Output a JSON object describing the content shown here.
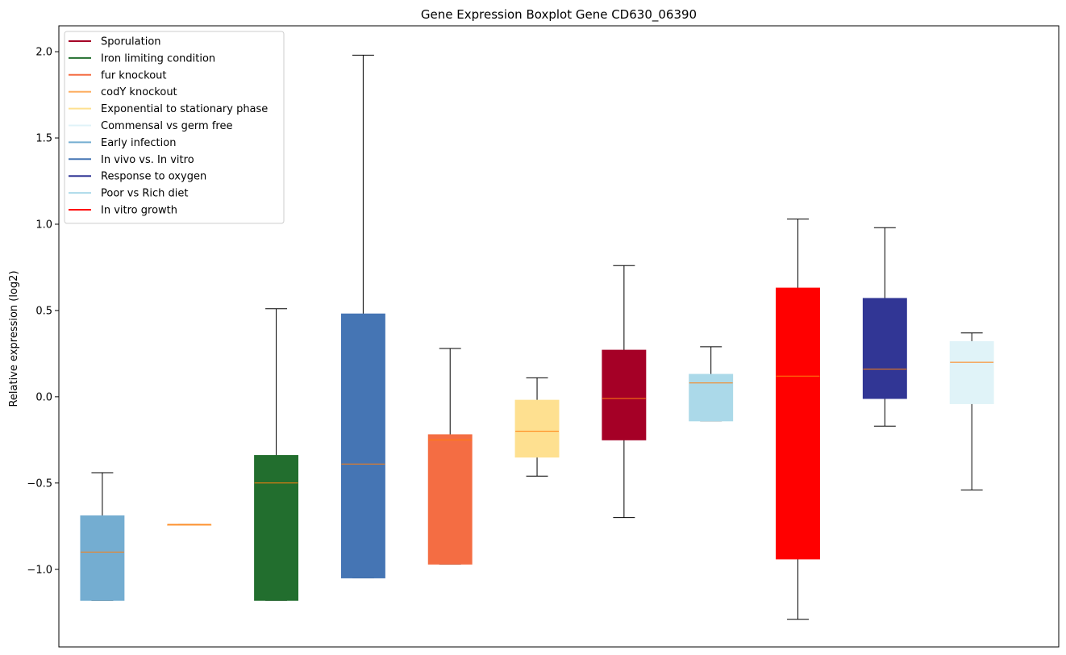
{
  "chart_data": {
    "type": "boxplot",
    "title": "Gene Expression Boxplot Gene CD630_06390",
    "xlabel": "",
    "ylabel": "Relative expression (log2)",
    "ylim": [
      -1.45,
      2.15
    ],
    "yticks": [
      -1.0,
      -0.5,
      0.0,
      0.5,
      1.0,
      1.5,
      2.0
    ],
    "ytick_labels": [
      "−1.0",
      "−0.5",
      "0.0",
      "0.5",
      "1.0",
      "1.5",
      "2.0"
    ],
    "grid": false,
    "legend_position": "top-left",
    "legend": [
      {
        "label": "Sporulation",
        "color": "#a50026"
      },
      {
        "label": "Iron limiting condition",
        "color": "#226e2e"
      },
      {
        "label": "fur knockout",
        "color": "#f46d43"
      },
      {
        "label": "codY knockout",
        "color": "#fdae61"
      },
      {
        "label": "Exponential to stationary phase",
        "color": "#fee090"
      },
      {
        "label": "Commensal vs germ free",
        "color": "#e0f3f8"
      },
      {
        "label": "Early infection",
        "color": "#74add1"
      },
      {
        "label": "In vivo vs. In vitro",
        "color": "#4575b4"
      },
      {
        "label": "Response to oxygen",
        "color": "#313695"
      },
      {
        "label": "Poor vs Rich diet",
        "color": "#abd9e9"
      },
      {
        "label": "In vitro growth",
        "color": "#ff0000"
      }
    ],
    "boxes": [
      {
        "name": "Early infection",
        "color": "#74add1",
        "whislo": -1.18,
        "q1": -1.18,
        "med": -0.9,
        "q3": -0.69,
        "whishi": -0.44
      },
      {
        "name": "codY knockout",
        "color": "#fdae61",
        "whislo": -0.74,
        "q1": -0.74,
        "med": -0.74,
        "q3": -0.74,
        "whishi": -0.74
      },
      {
        "name": "Iron limiting condition",
        "color": "#226e2e",
        "whislo": -1.18,
        "q1": -1.18,
        "med": -0.5,
        "q3": -0.34,
        "whishi": 0.51
      },
      {
        "name": "In vivo vs. In vitro",
        "color": "#4575b4",
        "whislo": -1.05,
        "q1": -1.05,
        "med": -0.39,
        "q3": 0.48,
        "whishi": 1.98
      },
      {
        "name": "fur knockout",
        "color": "#f46d43",
        "whislo": -0.97,
        "q1": -0.97,
        "med": -0.25,
        "q3": -0.22,
        "whishi": 0.28
      },
      {
        "name": "Exponential to stationary phase",
        "color": "#fee090",
        "whislo": -0.46,
        "q1": -0.35,
        "med": -0.2,
        "q3": -0.02,
        "whishi": 0.11
      },
      {
        "name": "Sporulation",
        "color": "#a50026",
        "whislo": -0.7,
        "q1": -0.25,
        "med": -0.01,
        "q3": 0.27,
        "whishi": 0.76
      },
      {
        "name": "Poor vs Rich diet",
        "color": "#abd9e9",
        "whislo": -0.14,
        "q1": -0.14,
        "med": 0.08,
        "q3": 0.13,
        "whishi": 0.29
      },
      {
        "name": "In vitro growth",
        "color": "#ff0000",
        "whislo": -1.29,
        "q1": -0.94,
        "med": 0.12,
        "q3": 0.63,
        "whishi": 1.03
      },
      {
        "name": "Response to oxygen",
        "color": "#313695",
        "whislo": -0.17,
        "q1": -0.01,
        "med": 0.16,
        "q3": 0.57,
        "whishi": 0.98
      },
      {
        "name": "Commensal vs germ free",
        "color": "#e0f3f8",
        "whislo": -0.54,
        "q1": -0.04,
        "med": 0.2,
        "q3": 0.32,
        "whishi": 0.37
      }
    ],
    "median_color": "#ff7f0e"
  }
}
